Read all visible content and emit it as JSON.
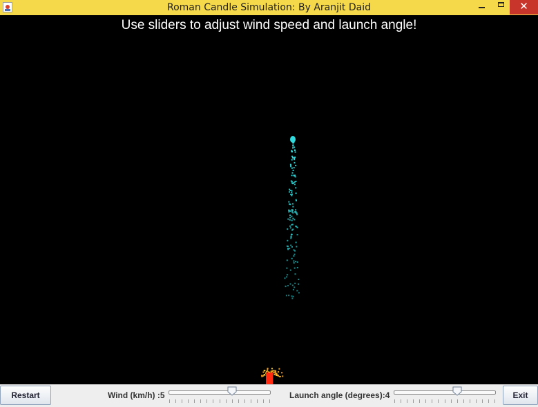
{
  "window": {
    "title": "Roman Candle Simulation: By Aranjit Daid",
    "close_symbol": "✕"
  },
  "canvas": {
    "instruction": "Use sliders to adjust wind speed and launch angle!",
    "background": "#000000",
    "spark_color": "#2fd9dc",
    "launcher_color": "#ff2a10",
    "flame_color": "#f0a020"
  },
  "controls": {
    "restart_label": "Restart",
    "exit_label": "Exit",
    "wind": {
      "label": "Wind (km/h) :5",
      "value_fraction": 0.63
    },
    "angle": {
      "label": "Launch angle (degrees):4",
      "value_fraction": 0.63
    }
  },
  "icons": [
    "java-app-icon",
    "minimize-icon",
    "maximize-icon",
    "close-icon"
  ]
}
